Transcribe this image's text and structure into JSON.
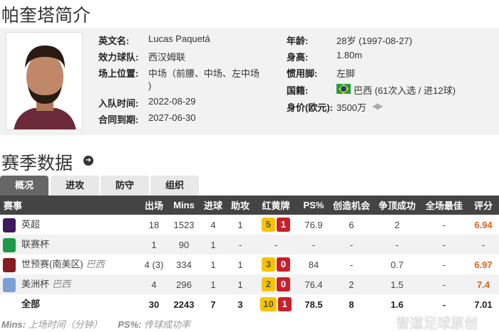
{
  "title": "帕奎塔简介",
  "profile": {
    "left": [
      {
        "label": "英文名:",
        "value": "Lucas Paquetá"
      },
      {
        "label": "效力球队:",
        "value": "西汉姆联"
      },
      {
        "label": "场上位置:",
        "value": "中场（前腰、中场、左中场",
        "value2": ")"
      },
      {
        "label": "入队时间:",
        "value": "2022-08-29"
      },
      {
        "label": "合同到期:",
        "value": "2027-06-30"
      }
    ],
    "right": [
      {
        "label": "年龄:",
        "value": "28岁 (1997-08-27)"
      },
      {
        "label": "身高:",
        "value": "1.80m"
      },
      {
        "label": "惯用脚:",
        "value": "左脚"
      },
      {
        "label": "国籍:",
        "value": "巴西 (61次入选 / 进12球)"
      },
      {
        "label": "身价(欧元):",
        "value": "3500万"
      }
    ]
  },
  "section_title": "赛季数据",
  "tabs": [
    "概况",
    "进攻",
    "防守",
    "组织"
  ],
  "table": {
    "headers": [
      "赛事",
      "出场",
      "Mins",
      "进球",
      "助攻",
      "红黄牌",
      "PS%",
      "创造机会",
      "争顶成功",
      "全场最佳",
      "评分"
    ],
    "rows": [
      {
        "comp": "英超",
        "country": "",
        "apps": "18",
        "mins": "1523",
        "goals": "4",
        "assists": "1",
        "yellow": "5",
        "red": "1",
        "ps": "76.9",
        "chances": "6",
        "aerial": "2",
        "motm": "-",
        "rating": "6.94",
        "logo": "#3d195b"
      },
      {
        "comp": "联赛杯",
        "country": "",
        "apps": "1",
        "mins": "90",
        "goals": "1",
        "assists": "-",
        "yellow": "",
        "red": "",
        "cards": "-",
        "ps": "-",
        "chances": "-",
        "aerial": "-",
        "motm": "-",
        "rating": "-",
        "logo": "#1c9a4a"
      },
      {
        "comp": "世预赛(南美区)",
        "country": "巴西",
        "apps": "4 (3)",
        "mins": "334",
        "goals": "1",
        "assists": "1",
        "yellow": "3",
        "red": "0",
        "ps": "84",
        "chances": "-",
        "aerial": "0.7",
        "motm": "-",
        "rating": "6.97",
        "logo": "#8a1a22"
      },
      {
        "comp": "美洲杯",
        "country": "巴西",
        "apps": "4",
        "mins": "296",
        "goals": "1",
        "assists": "1",
        "yellow": "2",
        "red": "0",
        "ps": "76.4",
        "chances": "2",
        "aerial": "1.5",
        "motm": "-",
        "rating": "7.4",
        "logo": "#7aa0d8"
      },
      {
        "comp": "全部",
        "country": "",
        "apps": "30",
        "mins": "2243",
        "goals": "7",
        "assists": "3",
        "yellow": "10",
        "red": "1",
        "ps": "78.5",
        "chances": "8",
        "aerial": "1.6",
        "motm": "-",
        "rating": "7.01",
        "logo": ""
      }
    ]
  },
  "footnote": {
    "k1": "Mins:",
    "v1": "上场时间（分钟）",
    "k2": "PS%:",
    "v2": "传球成功率"
  },
  "watermark": "智道足球原创",
  "colors": {
    "header": "#444444",
    "rating": "#e06010",
    "yellow": "#f8c400",
    "red": "#c8202c"
  }
}
